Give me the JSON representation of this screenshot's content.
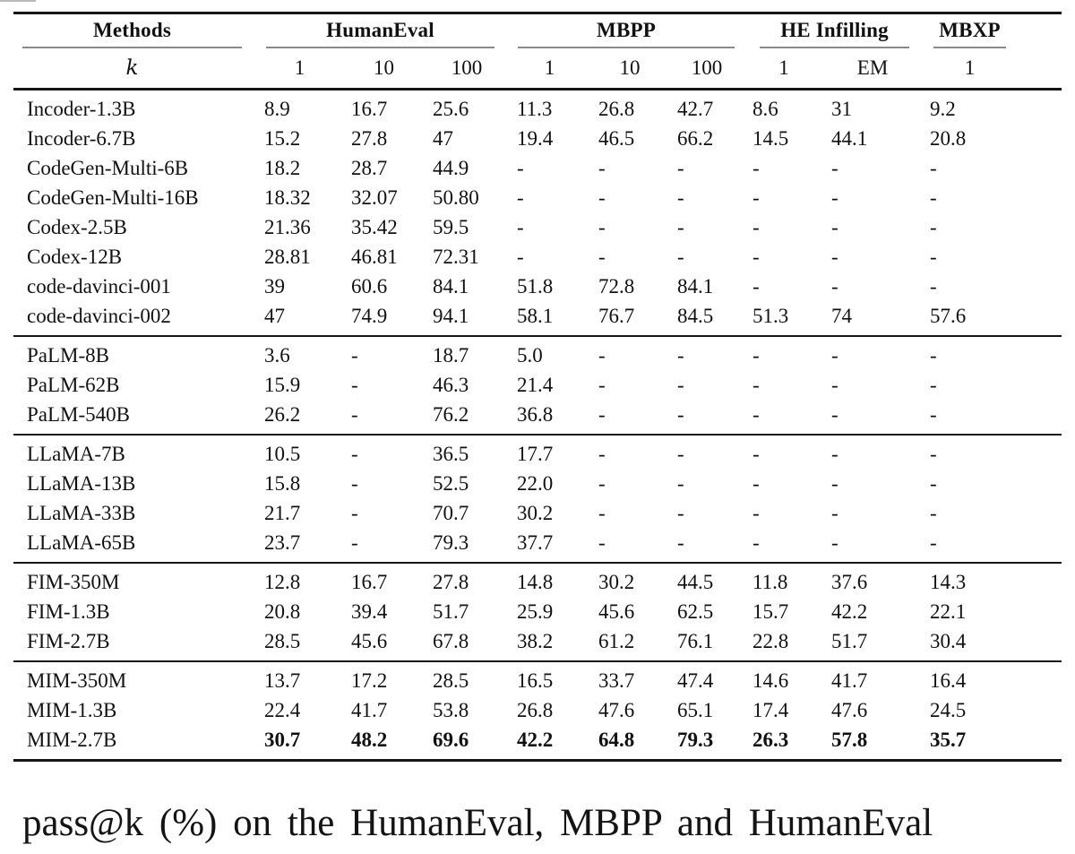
{
  "page": {
    "background": "#ffffff",
    "caption": "pass@k (%) on the HumanEval, MBPP and HumanEval"
  },
  "table": {
    "colors": {
      "rule": "#161616",
      "cmidrule": "#8a8a8a",
      "text": "#111111"
    },
    "col_groups": [
      {
        "label": "Methods",
        "span": 1
      },
      {
        "label": "HumanEval",
        "span": 3
      },
      {
        "label": "MBPP",
        "span": 3
      },
      {
        "label": "HE Infilling",
        "span": 2
      },
      {
        "label": "MBXP",
        "span": 1
      }
    ],
    "k_row": [
      "k",
      "1",
      "10",
      "100",
      "1",
      "10",
      "100",
      "1",
      "EM",
      "1"
    ],
    "groups": [
      {
        "rows": [
          {
            "method": "Incoder-1.3B",
            "values": [
              "8.9",
              "16.7",
              "25.6",
              "11.3",
              "26.8",
              "42.7",
              "8.6",
              "31",
              "9.2"
            ],
            "bold": false
          },
          {
            "method": "Incoder-6.7B",
            "values": [
              "15.2",
              "27.8",
              "47",
              "19.4",
              "46.5",
              "66.2",
              "14.5",
              "44.1",
              "20.8"
            ],
            "bold": false
          },
          {
            "method": "CodeGen-Multi-6B",
            "values": [
              "18.2",
              "28.7",
              "44.9",
              "-",
              "-",
              "-",
              "-",
              "-",
              "-"
            ],
            "bold": false
          },
          {
            "method": "CodeGen-Multi-16B",
            "values": [
              "18.32",
              "32.07",
              "50.80",
              "-",
              "-",
              "-",
              "-",
              "-",
              "-"
            ],
            "bold": false
          },
          {
            "method": "Codex-2.5B",
            "values": [
              "21.36",
              "35.42",
              "59.5",
              "-",
              "-",
              "-",
              "-",
              "-",
              "-"
            ],
            "bold": false
          },
          {
            "method": "Codex-12B",
            "values": [
              "28.81",
              "46.81",
              "72.31",
              "-",
              "-",
              "-",
              "-",
              "-",
              "-"
            ],
            "bold": false
          },
          {
            "method": "code-davinci-001",
            "values": [
              "39",
              "60.6",
              "84.1",
              "51.8",
              "72.8",
              "84.1",
              "-",
              "-",
              "-"
            ],
            "bold": false
          },
          {
            "method": "code-davinci-002",
            "values": [
              "47",
              "74.9",
              "94.1",
              "58.1",
              "76.7",
              "84.5",
              "51.3",
              "74",
              "57.6"
            ],
            "bold": false
          }
        ]
      },
      {
        "rows": [
          {
            "method": "PaLM-8B",
            "values": [
              "3.6",
              "-",
              "18.7",
              "5.0",
              "-",
              "-",
              "-",
              "-",
              "-"
            ],
            "bold": false
          },
          {
            "method": "PaLM-62B",
            "values": [
              "15.9",
              "-",
              "46.3",
              "21.4",
              "-",
              "-",
              "-",
              "-",
              "-"
            ],
            "bold": false
          },
          {
            "method": "PaLM-540B",
            "values": [
              "26.2",
              "-",
              "76.2",
              "36.8",
              "-",
              "-",
              "-",
              "-",
              "-"
            ],
            "bold": false
          }
        ]
      },
      {
        "rows": [
          {
            "method": "LLaMA-7B",
            "values": [
              "10.5",
              "-",
              "36.5",
              "17.7",
              "-",
              "-",
              "-",
              "-",
              "-"
            ],
            "bold": false
          },
          {
            "method": "LLaMA-13B",
            "values": [
              "15.8",
              "-",
              "52.5",
              "22.0",
              "-",
              "-",
              "-",
              "-",
              "-"
            ],
            "bold": false
          },
          {
            "method": "LLaMA-33B",
            "values": [
              "21.7",
              "-",
              "70.7",
              "30.2",
              "-",
              "-",
              "-",
              "-",
              "-"
            ],
            "bold": false
          },
          {
            "method": "LLaMA-65B",
            "values": [
              "23.7",
              "-",
              "79.3",
              "37.7",
              "-",
              "-",
              "-",
              "-",
              "-"
            ],
            "bold": false
          }
        ]
      },
      {
        "rows": [
          {
            "method": "FIM-350M",
            "values": [
              "12.8",
              "16.7",
              "27.8",
              "14.8",
              "30.2",
              "44.5",
              "11.8",
              "37.6",
              "14.3"
            ],
            "bold": false
          },
          {
            "method": "FIM-1.3B",
            "values": [
              "20.8",
              "39.4",
              "51.7",
              "25.9",
              "45.6",
              "62.5",
              "15.7",
              "42.2",
              "22.1"
            ],
            "bold": false
          },
          {
            "method": "FIM-2.7B",
            "values": [
              "28.5",
              "45.6",
              "67.8",
              "38.2",
              "61.2",
              "76.1",
              "22.8",
              "51.7",
              "30.4"
            ],
            "bold": false
          }
        ]
      },
      {
        "rows": [
          {
            "method": "MIM-350M",
            "values": [
              "13.7",
              "17.2",
              "28.5",
              "16.5",
              "33.7",
              "47.4",
              "14.6",
              "41.7",
              "16.4"
            ],
            "bold": false
          },
          {
            "method": "MIM-1.3B",
            "values": [
              "22.4",
              "41.7",
              "53.8",
              "26.8",
              "47.6",
              "65.1",
              "17.4",
              "47.6",
              "24.5"
            ],
            "bold": false
          },
          {
            "method": "MIM-2.7B",
            "values": [
              "30.7",
              "48.2",
              "69.6",
              "42.2",
              "64.8",
              "79.3",
              "26.3",
              "57.8",
              "35.7"
            ],
            "bold": true
          }
        ]
      }
    ]
  }
}
